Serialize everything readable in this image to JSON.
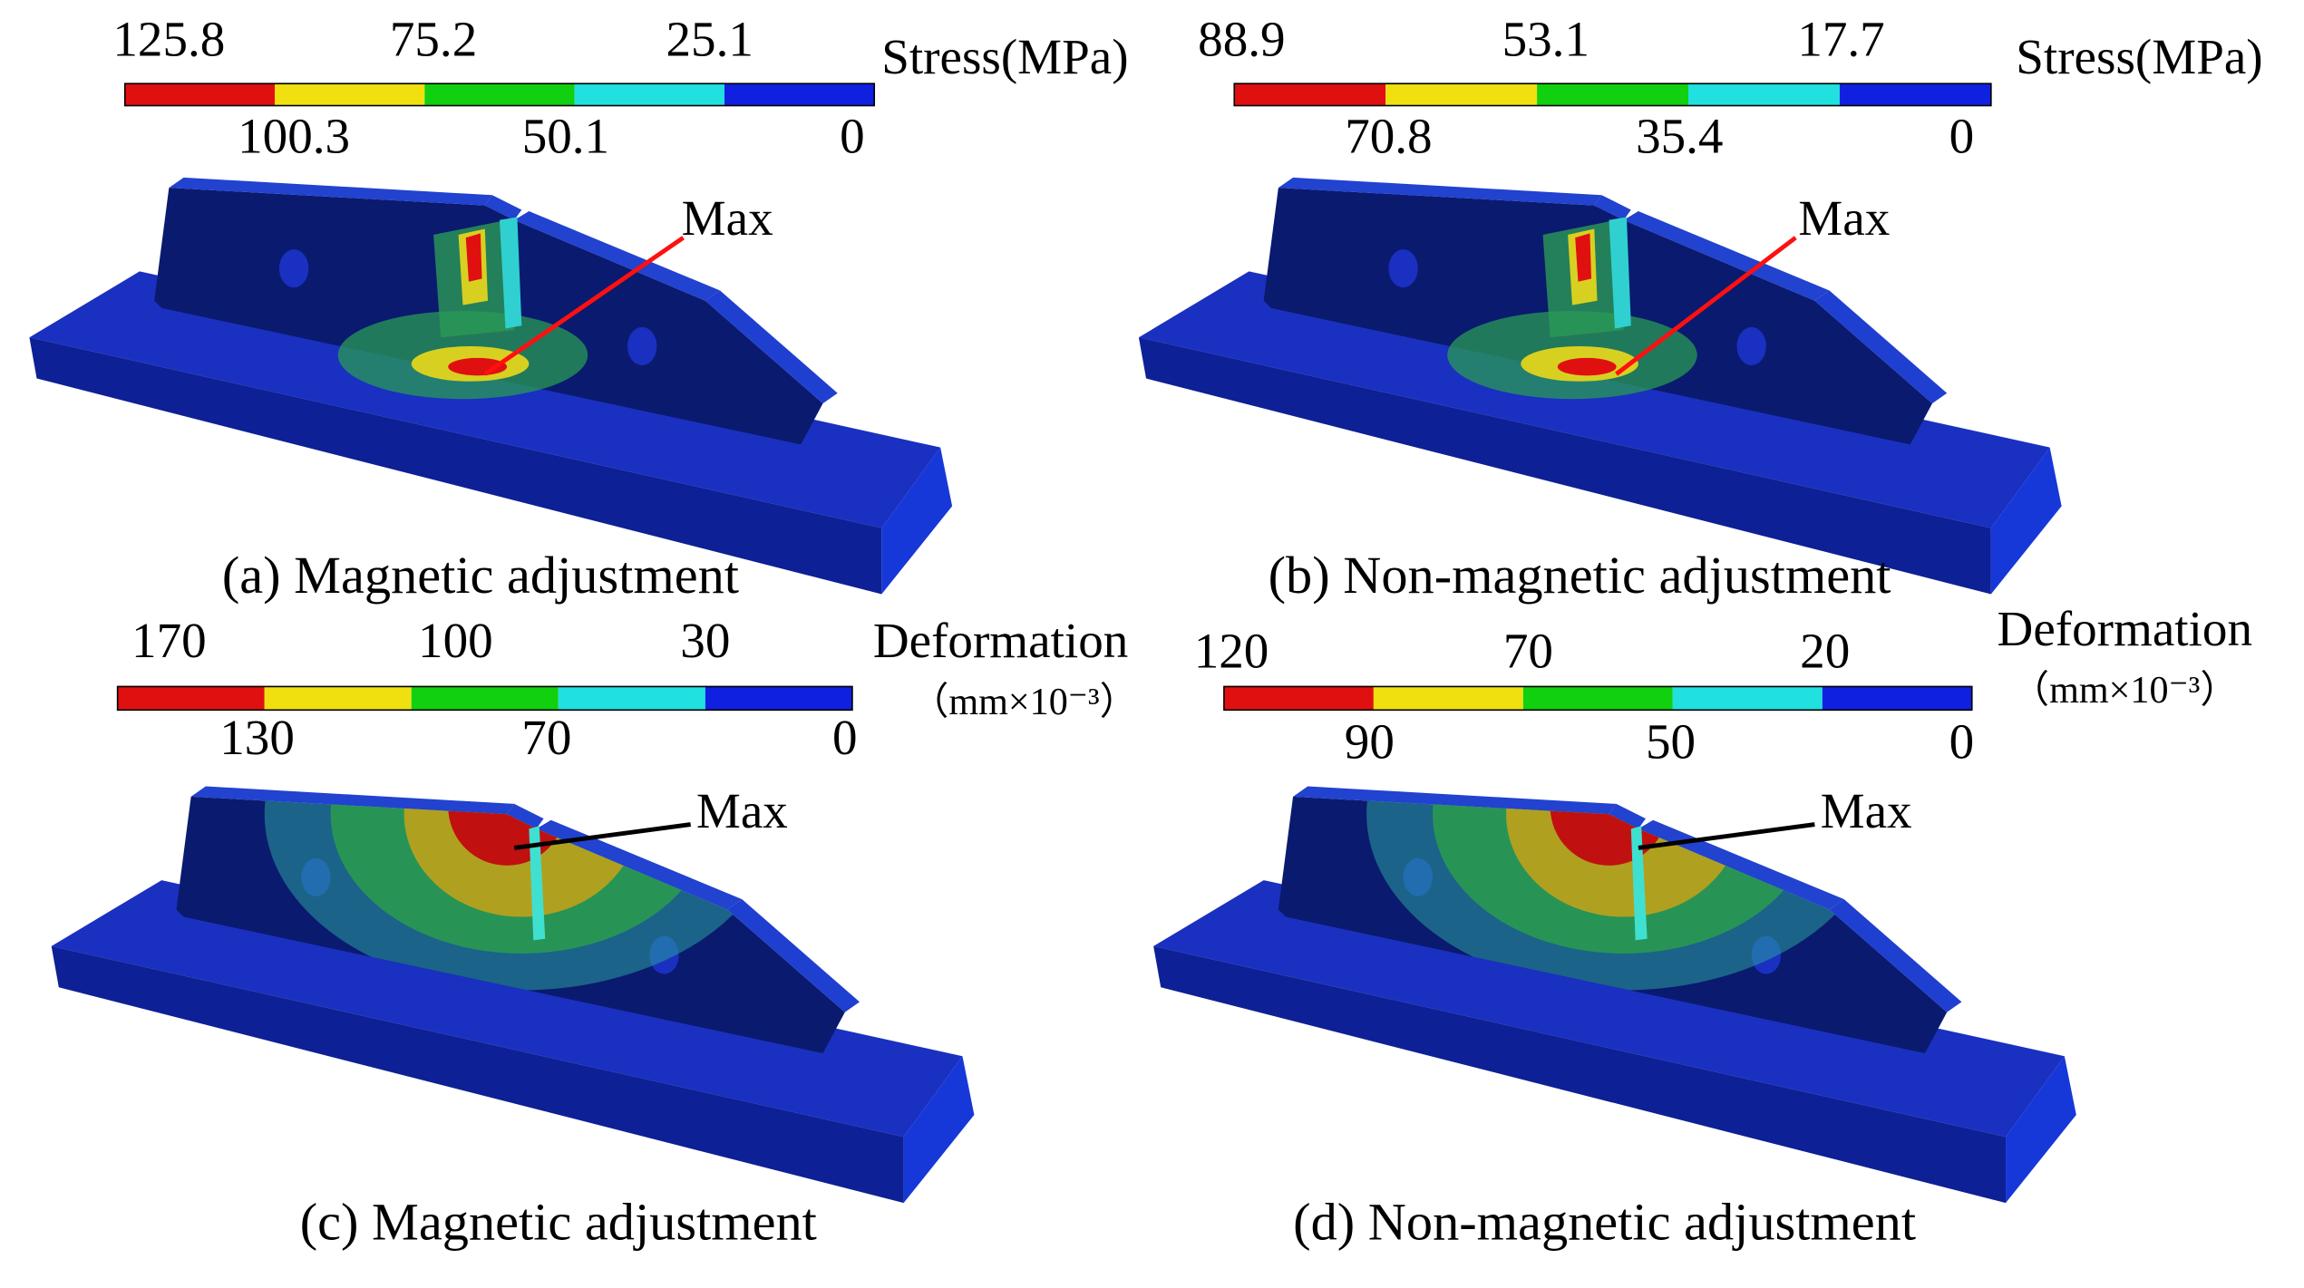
{
  "panels": [
    {
      "title": "(a) Magnetic adjustment",
      "legend_title": "Stress(MPa)",
      "scale_top": [
        "125.8",
        "75.2",
        "25.1"
      ],
      "scale_bottom": [
        "100.3",
        "50.1",
        "0"
      ],
      "max_label": "Max"
    },
    {
      "title": "(b) Non-magnetic adjustment",
      "legend_title": "Stress(MPa)",
      "scale_top": [
        "88.9",
        "53.1",
        "17.7"
      ],
      "scale_bottom": [
        "70.8",
        "35.4",
        "0"
      ],
      "max_label": "Max"
    },
    {
      "title": "(c) Magnetic adjustment",
      "legend_title": "Deformation",
      "legend_unit": "（mm×10⁻³）",
      "scale_top": [
        "170",
        "100",
        "30"
      ],
      "scale_bottom": [
        "130",
        "70",
        "0"
      ],
      "max_label": "Max"
    },
    {
      "title": "(d) Non-magnetic adjustment",
      "legend_title": "Deformation",
      "legend_unit": "（mm×10⁻³）",
      "scale_top": [
        "120",
        "70",
        "20"
      ],
      "scale_bottom": [
        "90",
        "50",
        "0"
      ],
      "max_label": "Max"
    }
  ]
}
